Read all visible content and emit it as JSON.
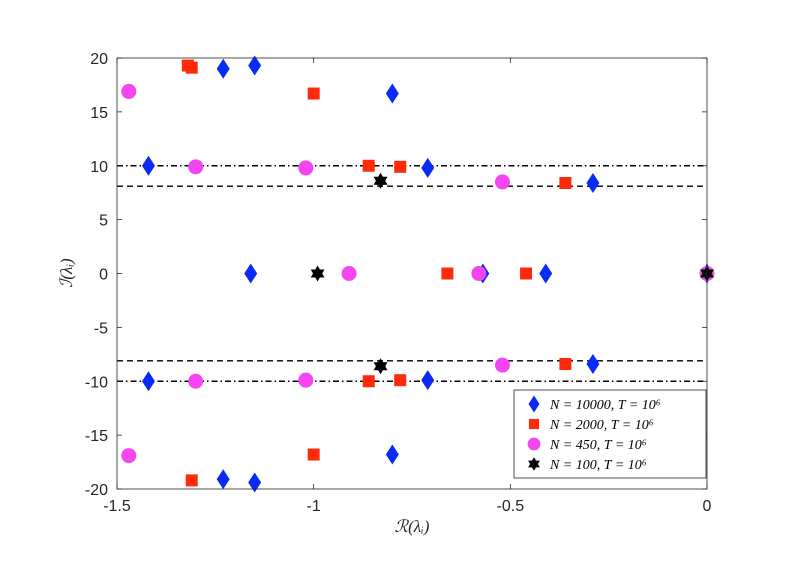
{
  "chart_data": {
    "type": "scatter",
    "xlabel": "ℛ(λᵢ)",
    "ylabel": "ℐ(λᵢ)",
    "xlim": [
      -1.5,
      0
    ],
    "ylim": [
      -20,
      20
    ],
    "xticks": [
      "-1.5",
      "-1",
      "-0.5",
      "0"
    ],
    "yticks": [
      "-20",
      "-15",
      "-10",
      "-5",
      "0",
      "5",
      "10",
      "15",
      "20"
    ],
    "grid": false,
    "legend_position": "bottom-right",
    "hlines": [
      {
        "y": 10,
        "style": "dashdot"
      },
      {
        "y": -10,
        "style": "dashdot"
      },
      {
        "y": 8.1,
        "style": "dashed"
      },
      {
        "y": -8.1,
        "style": "dashed"
      }
    ],
    "series": [
      {
        "name": "N = 10000, T = 10⁶",
        "marker": "diamond",
        "color": "#0A2BF5",
        "points": [
          [
            -1.42,
            10.0
          ],
          [
            -1.42,
            -10.0
          ],
          [
            -1.23,
            19.0
          ],
          [
            -1.23,
            -19.1
          ],
          [
            -1.15,
            19.3
          ],
          [
            -1.15,
            -19.4
          ],
          [
            -1.16,
            0.0
          ],
          [
            -0.8,
            16.7
          ],
          [
            -0.8,
            -16.8
          ],
          [
            -0.71,
            9.8
          ],
          [
            -0.71,
            -9.9
          ],
          [
            -0.57,
            0.0
          ],
          [
            -0.41,
            0.0
          ],
          [
            -0.29,
            8.4
          ],
          [
            -0.29,
            -8.4
          ],
          [
            0.0,
            0.0
          ]
        ]
      },
      {
        "name": "N = 2000, T = 10⁶",
        "marker": "square",
        "color": "#FF2A0A",
        "points": [
          [
            -1.32,
            19.3
          ],
          [
            -1.31,
            19.1
          ],
          [
            -1.31,
            -19.2
          ],
          [
            -1.0,
            16.7
          ],
          [
            -1.0,
            -16.8
          ],
          [
            -0.86,
            10.0
          ],
          [
            -0.86,
            -10.0
          ],
          [
            -0.78,
            9.9
          ],
          [
            -0.78,
            -9.9
          ],
          [
            -0.66,
            0.0
          ],
          [
            -0.46,
            0.0
          ],
          [
            -0.36,
            8.4
          ],
          [
            -0.36,
            -8.4
          ]
        ]
      },
      {
        "name": "N = 450, T = 10⁶",
        "marker": "circle",
        "color": "#F545F0",
        "points": [
          [
            -1.47,
            16.9
          ],
          [
            -1.47,
            -16.9
          ],
          [
            -1.3,
            9.9
          ],
          [
            -1.3,
            -10.0
          ],
          [
            -1.02,
            9.8
          ],
          [
            -1.02,
            -9.9
          ],
          [
            -0.91,
            0.0
          ],
          [
            -0.58,
            0.0
          ],
          [
            -0.52,
            8.5
          ],
          [
            -0.52,
            -8.5
          ],
          [
            0.0,
            0.0
          ]
        ]
      },
      {
        "name": "N = 100, T = 10⁶",
        "marker": "hexagram",
        "color": "#000000",
        "points": [
          [
            -0.99,
            0.0
          ],
          [
            -0.83,
            8.6
          ],
          [
            -0.83,
            -8.6
          ],
          [
            0.0,
            0.0
          ]
        ]
      }
    ]
  }
}
